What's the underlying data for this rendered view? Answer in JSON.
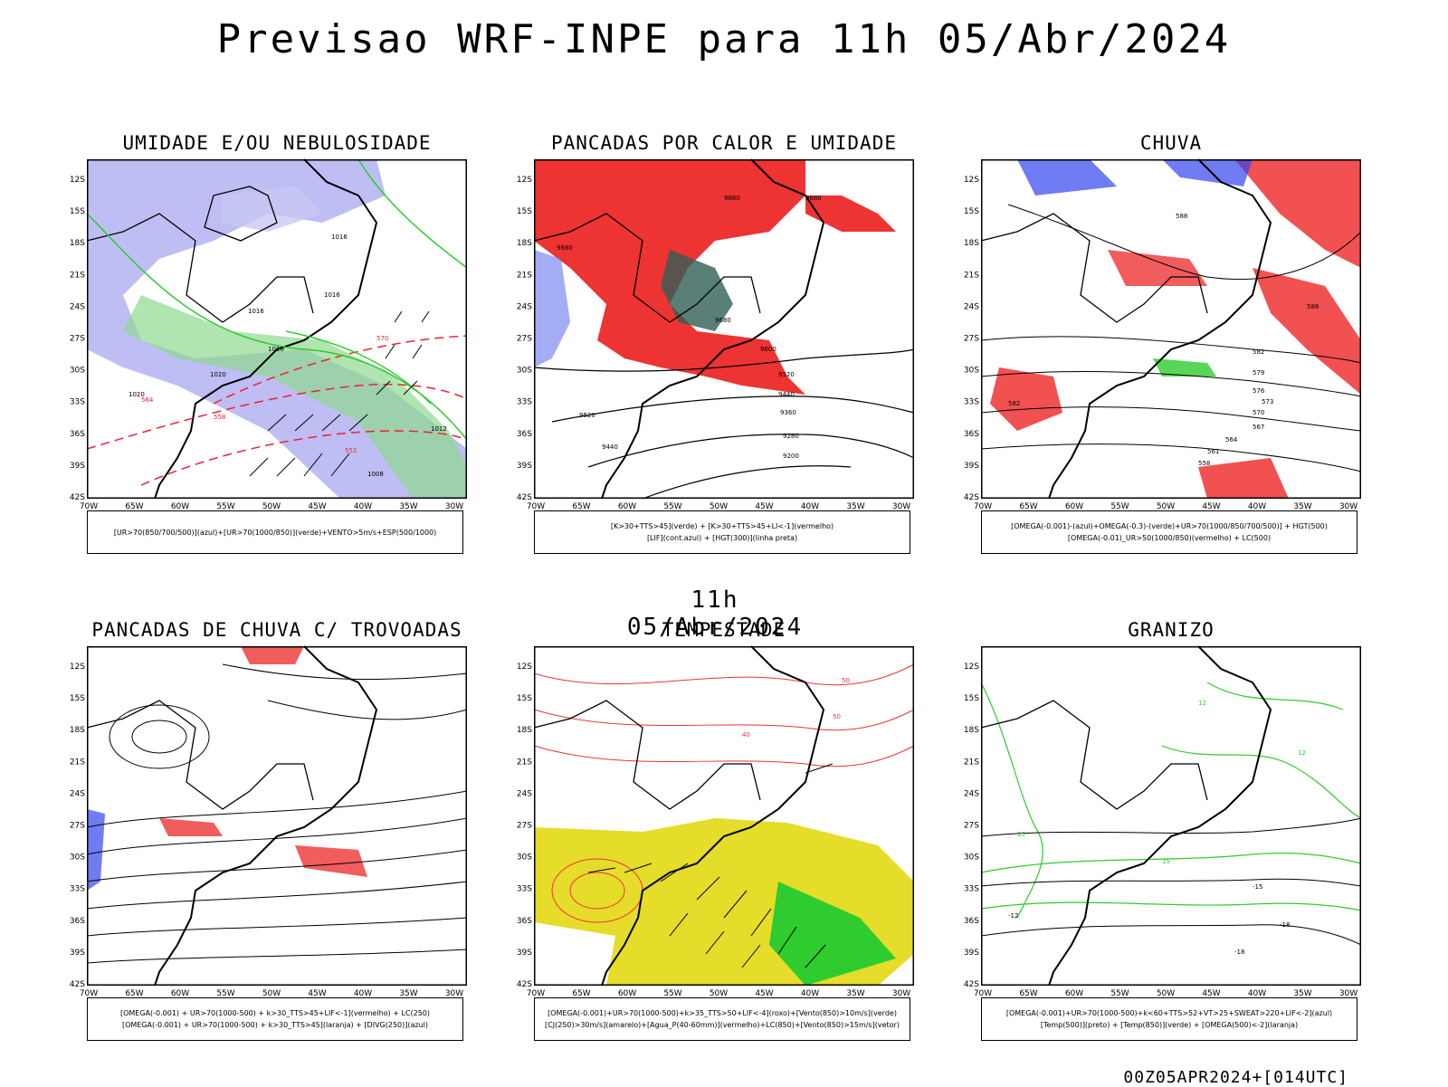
{
  "header": {
    "title": "Previsao WRF-INPE  para 11h 05/Abr/2024"
  },
  "middle": {
    "label": "11h 05/Abr/2024"
  },
  "footer": {
    "run": "00Z05APR2024+[014UTC]"
  },
  "axes": {
    "lat_labels": [
      "12S",
      "15S",
      "18S",
      "21S",
      "24S",
      "27S",
      "30S",
      "33S",
      "36S",
      "39S",
      "42S"
    ],
    "lon_labels": [
      "70W",
      "65W",
      "60W",
      "55W",
      "50W",
      "45W",
      "40W",
      "35W",
      "30W"
    ]
  },
  "colors": {
    "blue": "#7f7ff0",
    "green": "#2ecc2e",
    "red": "#ee3333",
    "teal": "#2f5f55",
    "yellow": "#e6dc2a",
    "orange": "#ff8800"
  },
  "panels": [
    {
      "title": "UMIDADE E/OU NEBULOSIDADE",
      "legend": [
        "[UR>70(850/700/500)](azul)+[UR>70(1000/850)](verde)+VENTO>5m/s+ESP(500/1000)"
      ],
      "contour_labels": [
        "1016",
        "1016",
        "1016",
        "1016",
        "1020",
        "1020",
        "1012",
        "1008",
        "570",
        "564",
        "558",
        "552"
      ]
    },
    {
      "title": "PANCADAS POR CALOR E UMIDADE",
      "legend": [
        "[K>30+TTS>45](verde) + [K>30+TTS>45+LI<-1](vermelho)",
        "[LIF](cont.azul) + [HGT(300)](linha preta)"
      ],
      "contour_labels": [
        "9680",
        "9680",
        "9680",
        "9680",
        "9600",
        "9520",
        "9520",
        "9440",
        "9360",
        "9280",
        "9200",
        "9440"
      ]
    },
    {
      "title": "CHUVA",
      "legend": [
        "[OMEGA(-0.001)-(azul)+OMEGA(-0.3)-(verde)+UR>70(1000/850/700/500)] + HGT(500)",
        "[OMEGA(-0.01)_UR>50(1000/850)(vermelho) + LC(500)"
      ],
      "contour_labels": [
        "588",
        "588",
        "582",
        "582",
        "579",
        "576",
        "573",
        "570",
        "567",
        "564",
        "561",
        "558"
      ]
    },
    {
      "title": "PANCADAS DE CHUVA C/ TROVOADAS",
      "legend": [
        "[OMEGA(-0.001) + UR>70(1000-500) + k>30_TTS>45+LIF<-1](vermelho) + LC(250)",
        "[OMEGA(-0.001) + UR>70(1000-500) + k>30_TTS>45](laranja) + [DIVG(250)](azul)"
      ]
    },
    {
      "title": "TEMPESTADE",
      "legend": [
        "[OMEGA(-0.001)+UR>70(1000-500)+k>35_TTS>50+LIF<-4](roxo)+[Vento(850)>10m/s](verde)",
        "[CJ(250)>30m/s](amarelo)+[Agua_P(40-60mm)](vermelho)+LC(850)+[Vento(850)>15m/s](vetor)"
      ],
      "contour_labels": [
        "50",
        "50",
        "40"
      ]
    },
    {
      "title": "GRANIZO",
      "legend": [
        "[OMEGA(-0.001)+UR>70(1000-500)+k<60+TTS>52+VT>25+SWEAT>220+LIF<-2](azul)",
        "[Temp(500)](preto) + [Temp(850)](verde) + [OMEGA(500)<-2](laranja)"
      ],
      "contour_labels": [
        "12",
        "12",
        "15",
        "15",
        "-12",
        "-15",
        "-18",
        "-18"
      ]
    }
  ]
}
